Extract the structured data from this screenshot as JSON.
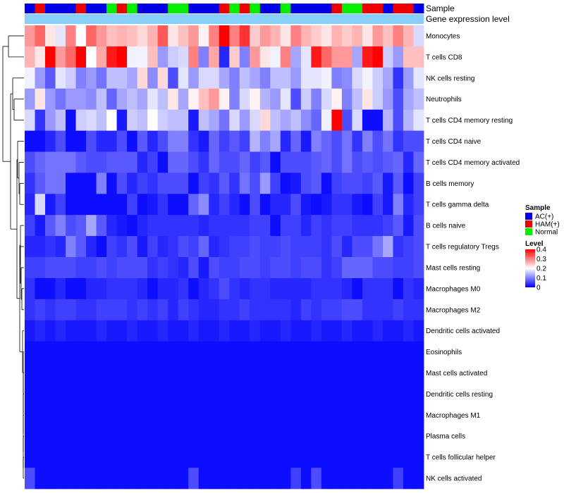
{
  "chart_data": {
    "type": "heatmap",
    "annotation_labels": {
      "sample": "Sample",
      "expression": "Gene expression level"
    },
    "rows": [
      "Monocytes",
      "T cells CD8",
      "NK cells resting",
      "Neutrophils",
      "T cells CD4 memory resting",
      "T cells CD4 naive",
      "T cells CD4 memory activated",
      "B cells memory",
      "T cells gamma delta",
      "B cells naive",
      "T cells regulatory  Tregs",
      "Mast cells resting",
      "Macrophages M0",
      "Macrophages M2",
      "Dendritic cells activated",
      "Eosinophils",
      "Mast cells activated",
      "Dendritic cells resting",
      "Macrophages M1",
      "Plasma cells",
      "T cells follicular helper",
      "NK cells activated"
    ],
    "columns_sample": [
      "AC(+)",
      "HAM(+)",
      "AC(+)",
      "AC(+)",
      "AC(+)",
      "HAM(+)",
      "AC(+)",
      "AC(+)",
      "Normal",
      "HAM(+)",
      "Normal",
      "AC(+)",
      "AC(+)",
      "AC(+)",
      "Normal",
      "Normal",
      "AC(+)",
      "AC(+)",
      "AC(+)",
      "HAM(+)",
      "Normal",
      "HAM(+)",
      "Normal",
      "AC(+)",
      "AC(+)",
      "Normal",
      "AC(+)",
      "AC(+)",
      "AC(+)",
      "AC(+)",
      "HAM(+)",
      "Normal",
      "Normal",
      "HAM(+)",
      "HAM(+)",
      "AC(+)",
      "HAM(+)",
      "HAM(+)",
      "AC(+)"
    ],
    "values": [
      [
        0.28,
        0.32,
        0.22,
        0.18,
        0.3,
        0.2,
        0.32,
        0.28,
        0.25,
        0.26,
        0.25,
        0.23,
        0.26,
        0.33,
        0.22,
        0.25,
        0.28,
        0.21,
        0.3,
        0.4,
        0.3,
        0.36,
        0.24,
        0.28,
        0.26,
        0.22,
        0.3,
        0.26,
        0.24,
        0.22,
        0.26,
        0.24,
        0.26,
        0.22,
        0.28,
        0.25,
        0.3,
        0.26,
        0.17
      ],
      [
        0.26,
        0.22,
        0.4,
        0.28,
        0.32,
        0.4,
        0.2,
        0.27,
        0.38,
        0.4,
        0.19,
        0.19,
        0.25,
        0.12,
        0.16,
        0.17,
        0.3,
        0.1,
        0.27,
        0.03,
        0.24,
        0.1,
        0.28,
        0.22,
        0.19,
        0.3,
        0.13,
        0.18,
        0.38,
        0.32,
        0.28,
        0.28,
        0.13,
        0.38,
        0.4,
        0.16,
        0.12,
        0.25,
        0.25
      ],
      [
        0.19,
        0.12,
        0.07,
        0.18,
        0.16,
        0.1,
        0.12,
        0.09,
        0.15,
        0.15,
        0.13,
        0.23,
        0.11,
        0.23,
        0.06,
        0.18,
        0.12,
        0.17,
        0.17,
        0.13,
        0.1,
        0.15,
        0.13,
        0.1,
        0.15,
        0.15,
        0.12,
        0.18,
        0.18,
        0.19,
        0.1,
        0.11,
        0.17,
        0.19,
        0.16,
        0.13,
        0.04,
        0.12,
        0.18
      ],
      [
        0.12,
        0.22,
        0.12,
        0.09,
        0.12,
        0.12,
        0.11,
        0.15,
        0.08,
        0.13,
        0.15,
        0.13,
        0.18,
        0.15,
        0.22,
        0.13,
        0.21,
        0.25,
        0.28,
        0.21,
        0.1,
        0.17,
        0.21,
        0.14,
        0.12,
        0.18,
        0.06,
        0.16,
        0.1,
        0.17,
        0.21,
        0.1,
        0.15,
        0.22,
        0.16,
        0.12,
        0.06,
        0.13,
        0.15
      ],
      [
        0.17,
        0.04,
        0.12,
        0.15,
        0.01,
        0.16,
        0.17,
        0.15,
        0.2,
        0.02,
        0.16,
        0.15,
        0.2,
        0.16,
        0.15,
        0.15,
        0.02,
        0.15,
        0.13,
        0.09,
        0.17,
        0.12,
        0.17,
        0.23,
        0.15,
        0.13,
        0.15,
        0.11,
        0.08,
        0.19,
        0.4,
        0.06,
        0.17,
        0.01,
        0.01,
        0.14,
        0.06,
        0.14,
        0.18
      ],
      [
        0.01,
        0.01,
        0.03,
        0.06,
        0.01,
        0.01,
        0.06,
        0.03,
        0.03,
        0.06,
        0.01,
        0.07,
        0.03,
        0.06,
        0.1,
        0.1,
        0.04,
        0.02,
        0.08,
        0.05,
        0.07,
        0.05,
        0.14,
        0.1,
        0.13,
        0.03,
        0.08,
        0.02,
        0.1,
        0.08,
        0.06,
        0.09,
        0.04,
        0.1,
        0.06,
        0.09,
        0.04,
        0.06,
        0.06
      ],
      [
        0.06,
        0.08,
        0.09,
        0.09,
        0.09,
        0.07,
        0.06,
        0.06,
        0.07,
        0.07,
        0.07,
        0.03,
        0.05,
        0.01,
        0.08,
        0.08,
        0.06,
        0.04,
        0.08,
        0.06,
        0.06,
        0.08,
        0.05,
        0.07,
        0.01,
        0.06,
        0.06,
        0.06,
        0.07,
        0.08,
        0.06,
        0.09,
        0.06,
        0.07,
        0.06,
        0.07,
        0.08,
        0.03,
        0.08
      ],
      [
        0.04,
        0.07,
        0.09,
        0.09,
        0.01,
        0.01,
        0.01,
        0.1,
        0.01,
        0.06,
        0.03,
        0.05,
        0.04,
        0.06,
        0.06,
        0.06,
        0.01,
        0.05,
        0.04,
        0.07,
        0.04,
        0.09,
        0.06,
        0.12,
        0.05,
        0.01,
        0.02,
        0.06,
        0.07,
        0.01,
        0.05,
        0.06,
        0.06,
        0.05,
        0.07,
        0.02,
        0.07,
        0.01,
        0.05
      ],
      [
        0.03,
        0.17,
        0.02,
        0.05,
        0.01,
        0.01,
        0.01,
        0.01,
        0.01,
        0.01,
        0.05,
        0.01,
        0.02,
        0.04,
        0.01,
        0.01,
        0.08,
        0.11,
        0.03,
        0.05,
        0.03,
        0.01,
        0.06,
        0.01,
        0.03,
        0.03,
        0.06,
        0.02,
        0.01,
        0.02,
        0.04,
        0.04,
        0.02,
        0.01,
        0.05,
        0.02,
        0.1,
        0.03,
        0.05
      ],
      [
        0.05,
        0.02,
        0.07,
        0.1,
        0.06,
        0.07,
        0.13,
        0.07,
        0.03,
        0.02,
        0.01,
        0.03,
        0.04,
        0.04,
        0.04,
        0.04,
        0.04,
        0.03,
        0.04,
        0.04,
        0.04,
        0.04,
        0.05,
        0.05,
        0.01,
        0.05,
        0.05,
        0.03,
        0.05,
        0.04,
        0.05,
        0.05,
        0.04,
        0.04,
        0.04,
        0.05,
        0.07,
        0.02,
        0.06
      ],
      [
        0.03,
        0.03,
        0.04,
        0.03,
        0.1,
        0.07,
        0.03,
        0.01,
        0.05,
        0.04,
        0.06,
        0.02,
        0.05,
        0.03,
        0.04,
        0.06,
        0.05,
        0.08,
        0.03,
        0.04,
        0.05,
        0.05,
        0.06,
        0.05,
        0.05,
        0.06,
        0.05,
        0.05,
        0.05,
        0.04,
        0.06,
        0.03,
        0.06,
        0.06,
        0.09,
        0.13,
        0.04,
        0.05,
        0.06
      ],
      [
        0.05,
        0.05,
        0.06,
        0.06,
        0.06,
        0.05,
        0.05,
        0.06,
        0.05,
        0.06,
        0.06,
        0.06,
        0.04,
        0.05,
        0.04,
        0.03,
        0.06,
        0.02,
        0.06,
        0.05,
        0.05,
        0.06,
        0.06,
        0.05,
        0.06,
        0.06,
        0.05,
        0.06,
        0.06,
        0.04,
        0.05,
        0.08,
        0.08,
        0.08,
        0.06,
        0.06,
        0.05,
        0.05,
        0.06
      ],
      [
        0.04,
        0.01,
        0.01,
        0.03,
        0.01,
        0.01,
        0.03,
        0.03,
        0.04,
        0.04,
        0.04,
        0.03,
        0.01,
        0.03,
        0.03,
        0.04,
        0.01,
        0.03,
        0.04,
        0.06,
        0.04,
        0.03,
        0.04,
        0.04,
        0.03,
        0.03,
        0.03,
        0.03,
        0.04,
        0.04,
        0.04,
        0.03,
        0.01,
        0.04,
        0.04,
        0.04,
        0.01,
        0.04,
        0.03
      ],
      [
        0.04,
        0.05,
        0.04,
        0.05,
        0.05,
        0.04,
        0.04,
        0.05,
        0.05,
        0.05,
        0.04,
        0.05,
        0.04,
        0.05,
        0.03,
        0.05,
        0.04,
        0.03,
        0.03,
        0.04,
        0.04,
        0.05,
        0.04,
        0.04,
        0.04,
        0.04,
        0.03,
        0.05,
        0.04,
        0.05,
        0.05,
        0.06,
        0.06,
        0.04,
        0.04,
        0.04,
        0.05,
        0.04,
        0.04
      ],
      [
        0.02,
        0.03,
        0.02,
        0.03,
        0.02,
        0.02,
        0.02,
        0.03,
        0.02,
        0.02,
        0.03,
        0.02,
        0.02,
        0.03,
        0.02,
        0.02,
        0.03,
        0.02,
        0.02,
        0.03,
        0.02,
        0.02,
        0.03,
        0.02,
        0.02,
        0.03,
        0.02,
        0.02,
        0.03,
        0.02,
        0.02,
        0.03,
        0.02,
        0.02,
        0.03,
        0.02,
        0.02,
        0.03,
        0.02
      ],
      [
        0.01,
        0.01,
        0.01,
        0.01,
        0.01,
        0.01,
        0.01,
        0.01,
        0.01,
        0.01,
        0.01,
        0.01,
        0.01,
        0.01,
        0.01,
        0.01,
        0.01,
        0.01,
        0.01,
        0.01,
        0.01,
        0.01,
        0.01,
        0.01,
        0.01,
        0.01,
        0.01,
        0.01,
        0.01,
        0.01,
        0.01,
        0.01,
        0.01,
        0.01,
        0.01,
        0.01,
        0.01,
        0.01,
        0.01
      ],
      [
        0.01,
        0.01,
        0.01,
        0.01,
        0.01,
        0.01,
        0.01,
        0.01,
        0.01,
        0.01,
        0.01,
        0.01,
        0.01,
        0.01,
        0.01,
        0.01,
        0.01,
        0.01,
        0.01,
        0.01,
        0.01,
        0.01,
        0.01,
        0.01,
        0.01,
        0.01,
        0.01,
        0.01,
        0.01,
        0.01,
        0.01,
        0.01,
        0.01,
        0.01,
        0.01,
        0.01,
        0.01,
        0.01,
        0.01
      ],
      [
        0.01,
        0.01,
        0.01,
        0.01,
        0.01,
        0.01,
        0.01,
        0.01,
        0.01,
        0.01,
        0.01,
        0.01,
        0.01,
        0.01,
        0.01,
        0.01,
        0.01,
        0.01,
        0.01,
        0.01,
        0.01,
        0.01,
        0.01,
        0.01,
        0.01,
        0.01,
        0.01,
        0.01,
        0.01,
        0.01,
        0.01,
        0.01,
        0.01,
        0.01,
        0.01,
        0.01,
        0.01,
        0.01,
        0.01
      ],
      [
        0.01,
        0.01,
        0.01,
        0.01,
        0.01,
        0.01,
        0.01,
        0.01,
        0.01,
        0.01,
        0.01,
        0.01,
        0.01,
        0.01,
        0.01,
        0.01,
        0.01,
        0.01,
        0.01,
        0.01,
        0.01,
        0.01,
        0.01,
        0.01,
        0.01,
        0.01,
        0.01,
        0.01,
        0.01,
        0.01,
        0.01,
        0.01,
        0.01,
        0.01,
        0.01,
        0.01,
        0.01,
        0.01,
        0.01
      ],
      [
        0.01,
        0.01,
        0.01,
        0.01,
        0.01,
        0.01,
        0.01,
        0.01,
        0.01,
        0.01,
        0.01,
        0.01,
        0.01,
        0.01,
        0.01,
        0.01,
        0.01,
        0.01,
        0.01,
        0.01,
        0.01,
        0.01,
        0.01,
        0.01,
        0.01,
        0.01,
        0.01,
        0.01,
        0.01,
        0.01,
        0.01,
        0.01,
        0.01,
        0.01,
        0.01,
        0.01,
        0.01,
        0.01,
        0.01
      ],
      [
        0.01,
        0.01,
        0.01,
        0.01,
        0.01,
        0.01,
        0.01,
        0.01,
        0.01,
        0.01,
        0.01,
        0.01,
        0.01,
        0.01,
        0.01,
        0.01,
        0.01,
        0.01,
        0.01,
        0.01,
        0.01,
        0.01,
        0.01,
        0.01,
        0.01,
        0.01,
        0.01,
        0.01,
        0.01,
        0.01,
        0.01,
        0.01,
        0.01,
        0.01,
        0.01,
        0.01,
        0.01,
        0.01,
        0.01
      ],
      [
        0.06,
        0.01,
        0.01,
        0.01,
        0.01,
        0.01,
        0.01,
        0.01,
        0.01,
        0.01,
        0.01,
        0.01,
        0.01,
        0.01,
        0.01,
        0.01,
        0.06,
        0.01,
        0.01,
        0.01,
        0.01,
        0.01,
        0.01,
        0.01,
        0.01,
        0.01,
        0.05,
        0.01,
        0.06,
        0.01,
        0.01,
        0.01,
        0.01,
        0.01,
        0.01,
        0.01,
        0.05,
        0.01,
        0.01
      ]
    ],
    "sample_colors": {
      "AC(+)": "#0000e6",
      "HAM(+)": "#ee0000",
      "Normal": "#00ee00"
    },
    "expression_color": "#87cefa",
    "color_scale": {
      "low": "#0000ff",
      "mid": "#ffffff",
      "high": "#ff0000",
      "min": 0,
      "mid_value": 0.2,
      "max": 0.4
    },
    "legend": {
      "sample_title": "Sample",
      "sample_items": [
        "AC(+)",
        "HAM(+)",
        "Normal"
      ],
      "level_title": "Level",
      "level_ticks": [
        "0.4",
        "0.3",
        "0.2",
        "0.1",
        "0"
      ],
      "placement": "right"
    }
  }
}
